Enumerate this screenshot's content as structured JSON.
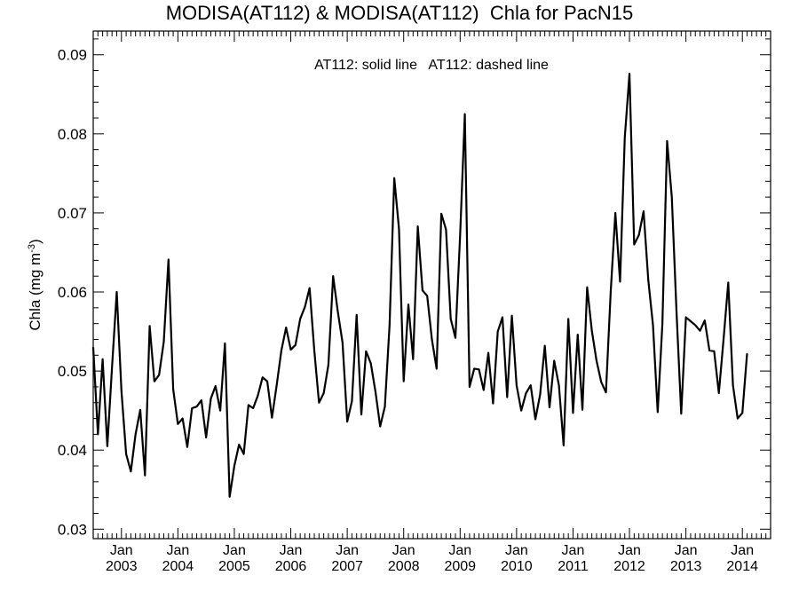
{
  "chart_data": {
    "type": "line",
    "title": "MODISA(AT112) & MODISA(AT112)  Chla for PacN15",
    "annotation": "AT112: solid line   AT112: dashed line",
    "ylabel": "Chla (mg m",
    "ylabel_sup": "-3",
    "ylabel_close": ")",
    "ylim": [
      0.0288,
      0.093
    ],
    "yticks": [
      0.03,
      0.04,
      0.05,
      0.06,
      0.07,
      0.08,
      0.09
    ],
    "ytick_labels": [
      "0.03",
      "0.04",
      "0.05",
      "0.06",
      "0.07",
      "0.08",
      "0.09"
    ],
    "xlim": [
      "2002-07-01",
      "2014-07-01"
    ],
    "xtick_month": "Jan",
    "xtick_years": [
      "2003",
      "2004",
      "2005",
      "2006",
      "2007",
      "2008",
      "2009",
      "2010",
      "2011",
      "2012",
      "2013",
      "2014"
    ],
    "grid": false,
    "series": [
      {
        "style": "solid",
        "color": "#000000",
        "start": "2002-07",
        "step": "month",
        "values": [
          0.053,
          0.042,
          0.0515,
          0.0405,
          0.0505,
          0.06,
          0.0475,
          0.0395,
          0.0373,
          0.042,
          0.0451,
          0.0368,
          0.0557,
          0.0487,
          0.0495,
          0.0537,
          0.0641,
          0.0477,
          0.0433,
          0.044,
          0.0404,
          0.0453,
          0.0455,
          0.0463,
          0.0416,
          0.0465,
          0.0481,
          0.045,
          0.0535,
          0.0341,
          0.038,
          0.0407,
          0.0395,
          0.0457,
          0.0453,
          0.0469,
          0.0492,
          0.0487,
          0.0441,
          0.0482,
          0.0526,
          0.0555,
          0.0527,
          0.0533,
          0.0566,
          0.0581,
          0.0605,
          0.0526,
          0.046,
          0.0472,
          0.0508,
          0.062,
          0.0575,
          0.0536,
          0.0436,
          0.0462,
          0.0571,
          0.0445,
          0.0525,
          0.051,
          0.0474,
          0.043,
          0.0455,
          0.0558,
          0.0744,
          0.068,
          0.0487,
          0.0584,
          0.0515,
          0.0683,
          0.0602,
          0.0595,
          0.054,
          0.0503,
          0.0699,
          0.0679,
          0.0566,
          0.0542,
          0.0672,
          0.0825,
          0.048,
          0.0503,
          0.0502,
          0.0476,
          0.0523,
          0.0459,
          0.055,
          0.0568,
          0.0467,
          0.057,
          0.0482,
          0.045,
          0.0472,
          0.0482,
          0.0439,
          0.047,
          0.0532,
          0.0454,
          0.0513,
          0.0482,
          0.0406,
          0.0566,
          0.0447,
          0.0546,
          0.0451,
          0.0606,
          0.0551,
          0.0513,
          0.0486,
          0.0473,
          0.0599,
          0.07,
          0.0613,
          0.0795,
          0.0876,
          0.066,
          0.0672,
          0.0702,
          0.0615,
          0.0558,
          0.0448,
          0.056,
          0.0791,
          0.072,
          0.0575,
          0.0446,
          0.0568,
          0.0563,
          0.0558,
          0.0551,
          0.0564,
          0.0526,
          0.0525,
          0.0472,
          0.054,
          0.0612,
          0.0482,
          0.044,
          0.0447,
          0.0522
        ]
      }
    ]
  }
}
